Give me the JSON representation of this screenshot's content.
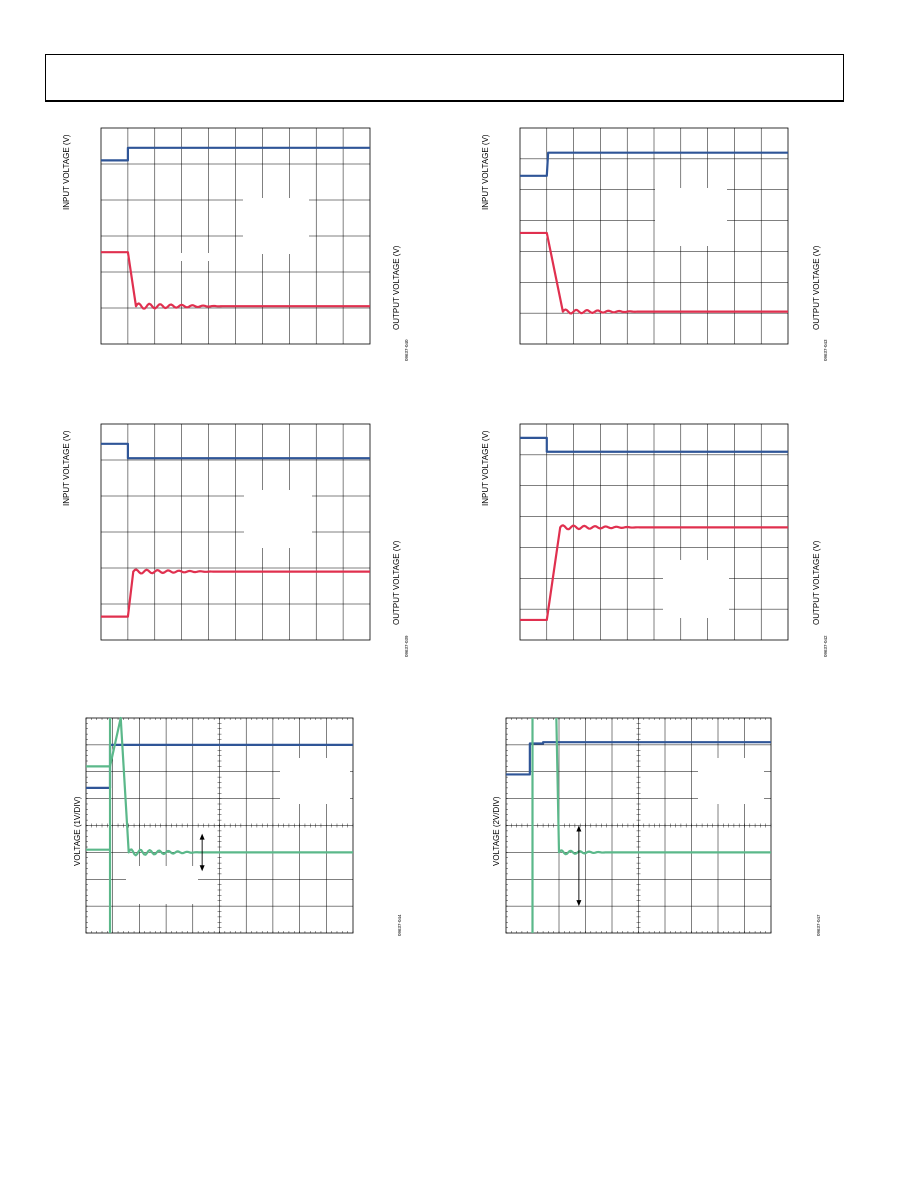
{
  "colors": {
    "blue": "#2f5597",
    "red": "#e0304f",
    "green": "#5bb88a",
    "grid": "#000000"
  },
  "labels": {
    "input_voltage": "INPUT VOLTAGE (V)",
    "output_voltage": "OUTPUT VOLTAGE (V)",
    "voltage_1v": "VOLTAGE (1V/DIV)",
    "voltage_2v": "VOLTAGE (2V/DIV)"
  },
  "codes": [
    "09637-040",
    "09637-043",
    "09637-039",
    "09637-042",
    "09637-044",
    "09637-047"
  ],
  "chart_data": [
    {
      "type": "line",
      "title": "",
      "ylabel_left": "INPUT VOLTAGE (V)",
      "ylabel_right": "OUTPUT VOLTAGE (V)",
      "xlim": [
        0,
        10
      ],
      "ylim": [
        0,
        6
      ],
      "grid": true,
      "series": [
        {
          "color": "blue",
          "x": [
            0,
            1,
            1,
            10
          ],
          "y": [
            5.1,
            5.1,
            5.45,
            5.45
          ]
        },
        {
          "color": "red",
          "x": [
            0,
            1,
            1.3,
            10
          ],
          "y": [
            2.55,
            2.55,
            1.05,
            1.05
          ],
          "ringing": {
            "start": 1.3,
            "end": 4.5,
            "amp": 0.08,
            "period": 0.4
          }
        }
      ]
    },
    {
      "type": "line",
      "title": "",
      "ylabel_left": "INPUT VOLTAGE (V)",
      "ylabel_right": "OUTPUT VOLTAGE (V)",
      "xlim": [
        0,
        10
      ],
      "ylim": [
        0,
        7
      ],
      "grid": true,
      "series": [
        {
          "color": "blue",
          "x": [
            0,
            1,
            1.05,
            10
          ],
          "y": [
            5.45,
            5.45,
            6.2,
            6.2
          ]
        },
        {
          "color": "red",
          "x": [
            0,
            1,
            1.6,
            10
          ],
          "y": [
            3.6,
            3.6,
            1.05,
            1.05
          ],
          "ringing": {
            "start": 1.6,
            "end": 4.5,
            "amp": 0.07,
            "period": 0.4
          }
        }
      ]
    },
    {
      "type": "line",
      "title": "",
      "ylabel_left": "INPUT VOLTAGE (V)",
      "ylabel_right": "OUTPUT VOLTAGE (V)",
      "xlim": [
        0,
        10
      ],
      "ylim": [
        0,
        6
      ],
      "grid": true,
      "series": [
        {
          "color": "blue",
          "x": [
            0,
            1,
            1,
            10
          ],
          "y": [
            5.45,
            5.45,
            5.05,
            5.05
          ]
        },
        {
          "color": "red",
          "x": [
            0,
            1,
            1.2,
            10
          ],
          "y": [
            0.65,
            0.65,
            1.9,
            1.9
          ],
          "ringing": {
            "start": 1.2,
            "end": 4.2,
            "amp": 0.06,
            "period": 0.4
          }
        }
      ]
    },
    {
      "type": "line",
      "title": "",
      "ylabel_left": "INPUT VOLTAGE (V)",
      "ylabel_right": "OUTPUT VOLTAGE (V)",
      "xlim": [
        0,
        10
      ],
      "ylim": [
        0,
        7
      ],
      "grid": true,
      "series": [
        {
          "color": "blue",
          "x": [
            0,
            1,
            1,
            10
          ],
          "y": [
            6.55,
            6.55,
            6.1,
            6.1
          ]
        },
        {
          "color": "red",
          "x": [
            0,
            1,
            1.5,
            10
          ],
          "y": [
            0.65,
            0.65,
            3.65,
            3.65
          ],
          "ringing": {
            "start": 1.5,
            "end": 4.5,
            "amp": 0.07,
            "period": 0.4
          }
        }
      ]
    },
    {
      "type": "line",
      "title": "",
      "ylabel_left": "VOLTAGE (1V/DIV)",
      "ylabel_right": "",
      "xlim": [
        0,
        10
      ],
      "ylim": [
        0,
        8
      ],
      "grid": true,
      "minor_ticks": true,
      "series": [
        {
          "color": "blue",
          "x": [
            0,
            0.9,
            0.9,
            10
          ],
          "y": [
            5.4,
            5.4,
            7.0,
            7.0
          ]
        },
        {
          "color": "green",
          "x": [
            0.9,
            0.9
          ],
          "y": [
            8.0,
            0.0
          ],
          "kind": "vertical"
        },
        {
          "color": "green",
          "x": [
            0,
            0.9,
            1.3,
            1.6,
            10
          ],
          "y": [
            6.2,
            6.2,
            8.0,
            3.0,
            3.0
          ],
          "ringing": {
            "start": 1.6,
            "end": 4.3,
            "amp": 0.12,
            "period": 0.35
          }
        },
        {
          "color": "green",
          "x": [
            0,
            0.9
          ],
          "y": [
            3.1,
            3.1
          ]
        }
      ],
      "annotations": [
        {
          "type": "double-arrow",
          "x": 4.35,
          "y1": 3.7,
          "y2": 2.3
        }
      ]
    },
    {
      "type": "line",
      "title": "",
      "ylabel_left": "VOLTAGE (2V/DIV)",
      "ylabel_right": "",
      "xlim": [
        0,
        10
      ],
      "ylim": [
        0,
        8
      ],
      "grid": true,
      "minor_ticks": true,
      "series": [
        {
          "color": "blue",
          "x": [
            0,
            0.9,
            0.9,
            1.4,
            1.4,
            10
          ],
          "y": [
            5.9,
            5.9,
            7.05,
            7.05,
            7.1,
            7.1
          ]
        },
        {
          "color": "green",
          "x": [
            1.0,
            1.0
          ],
          "y": [
            8.0,
            0.0
          ],
          "kind": "vertical"
        },
        {
          "color": "green",
          "x": [
            1.9,
            2.0,
            10
          ],
          "y": [
            8.0,
            3.0,
            3.0
          ],
          "ringing": {
            "start": 2.0,
            "end": 3.8,
            "amp": 0.08,
            "period": 0.35
          }
        }
      ],
      "annotations": [
        {
          "type": "double-arrow",
          "x": 2.75,
          "y1": 4.0,
          "y2": 1.0
        }
      ]
    }
  ]
}
